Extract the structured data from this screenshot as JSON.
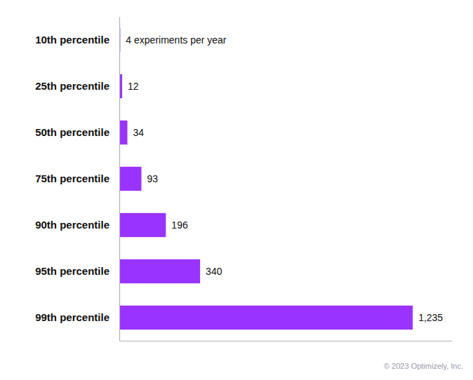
{
  "chart_data": {
    "type": "bar",
    "orientation": "horizontal",
    "categories": [
      "10th percentile",
      "25th percentile",
      "50th percentile",
      "75th percentile",
      "90th percentile",
      "95th percentile",
      "99th percentile"
    ],
    "values": [
      4,
      12,
      34,
      93,
      196,
      340,
      1235
    ],
    "value_labels": [
      "4  experiments per year",
      "12",
      "34",
      "93",
      "196",
      "340",
      "1,235"
    ],
    "data_labels": true,
    "color": "#9933ff",
    "xlim": [
      0,
      1400
    ],
    "tick_labels": false,
    "annotation": "© 2023 Optimizely, Inc."
  }
}
